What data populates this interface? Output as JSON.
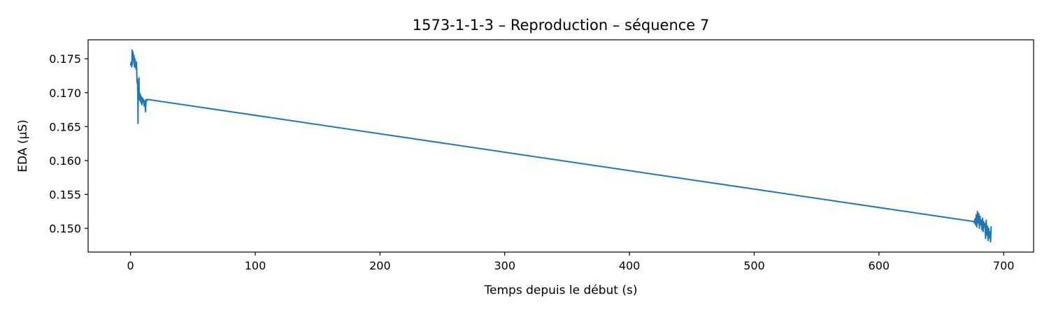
{
  "chart_data": {
    "type": "line",
    "title": "1573-1-1-3 – Reproduction – séquence 7",
    "xlabel": "Temps depuis le début (s)",
    "ylabel": "EDA (µS)",
    "xlim": [
      -34,
      724
    ],
    "ylim": [
      0.1465,
      0.1778
    ],
    "xticks": [
      0,
      100,
      200,
      300,
      400,
      500,
      600,
      700
    ],
    "yticks": [
      0.15,
      0.155,
      0.16,
      0.165,
      0.17,
      0.175
    ],
    "grid": false,
    "series_color": "#1f77b4",
    "series": [
      {
        "x": [
          0,
          0.5,
          1,
          1.3,
          1.6,
          2,
          2.4,
          2.8,
          3.2,
          3.6,
          4,
          4.4,
          4.8,
          5.2,
          5.5,
          5.8,
          6.0,
          6.2,
          6.5,
          6.8,
          7.0,
          7.3,
          7.6,
          8,
          8.4,
          8.8,
          9.2,
          9.6,
          10,
          10.5,
          11,
          11.5,
          12,
          12.5,
          13,
          13.5,
          14,
          676,
          676.5,
          677,
          677.5,
          678,
          678.5,
          679,
          679.5,
          680,
          680.5,
          681,
          681.5,
          682,
          682.5,
          683,
          683.5,
          684,
          684.5,
          685,
          685.5,
          686,
          686.5,
          687,
          687.5,
          688,
          688.5,
          689,
          689.5,
          690
        ],
        "y": [
          0.174,
          0.1745,
          0.1738,
          0.1763,
          0.1742,
          0.176,
          0.1748,
          0.1755,
          0.1738,
          0.175,
          0.174,
          0.1735,
          0.1745,
          0.1715,
          0.172,
          0.17,
          0.1655,
          0.171,
          0.1695,
          0.1722,
          0.169,
          0.17,
          0.1688,
          0.1697,
          0.1685,
          0.1694,
          0.1682,
          0.1692,
          0.1686,
          0.169,
          0.168,
          0.1688,
          0.1672,
          0.169,
          0.1688,
          0.169,
          0.169,
          0.151,
          0.1508,
          0.1514,
          0.1505,
          0.152,
          0.1502,
          0.1525,
          0.1508,
          0.1522,
          0.15,
          0.1518,
          0.1505,
          0.1512,
          0.1498,
          0.1515,
          0.1495,
          0.151,
          0.1502,
          0.1507,
          0.1485,
          0.1512,
          0.149,
          0.1503,
          0.1482,
          0.15,
          0.1486,
          0.1495,
          0.148,
          0.1503
        ]
      }
    ]
  }
}
